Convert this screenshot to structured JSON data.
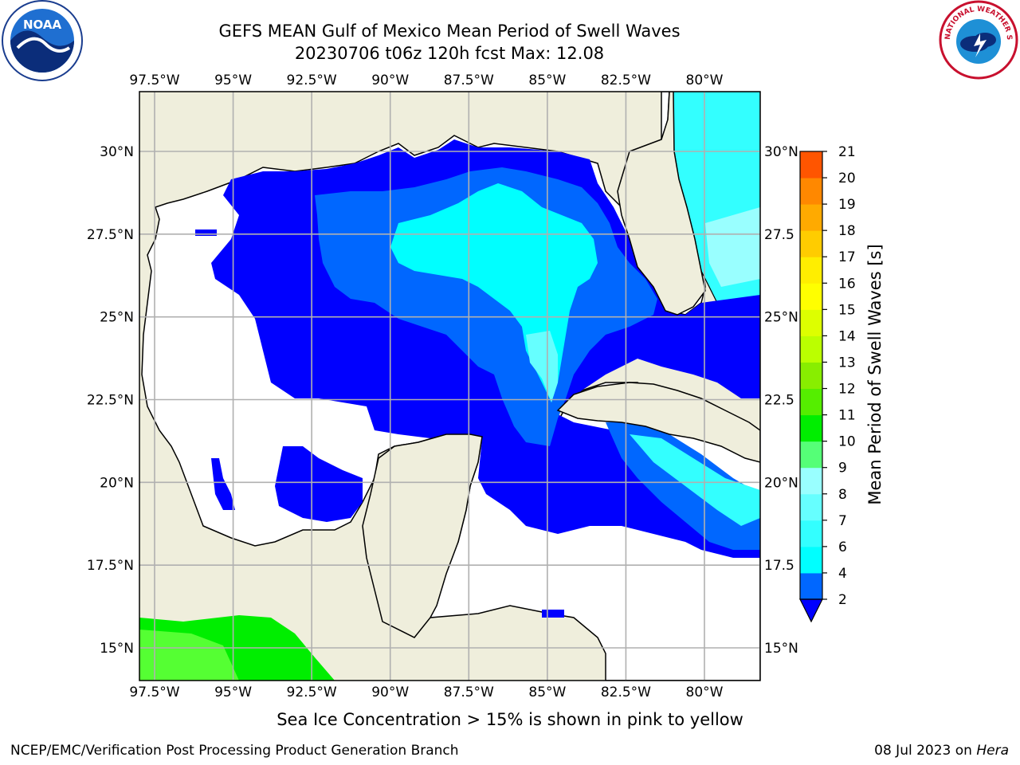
{
  "title": {
    "line1": "GEFS MEAN Gulf of Mexico Mean Period of Swell Waves",
    "line2": "20230706 t06z 120h fcst   Max: 12.08"
  },
  "map": {
    "lon_labels": [
      "97.5°W",
      "95°W",
      "92.5°W",
      "90°W",
      "87.5°W",
      "85°W",
      "82.5°W",
      "80°W"
    ],
    "lon_values": [
      -97.5,
      -95,
      -92.5,
      -90,
      -87.5,
      -85,
      -82.5,
      -80
    ],
    "lat_labels_left": [
      "30°N",
      "27.5°N",
      "25°N",
      "22.5°N",
      "20°N",
      "17.5°N",
      "15°N"
    ],
    "lat_labels_right": [
      "30°N",
      "27.5",
      "25°N",
      "22.5",
      "20°N",
      "17.5",
      "15°N"
    ],
    "lat_values": [
      30,
      27.5,
      25,
      22.5,
      20,
      17.5,
      15
    ],
    "colors": {
      "land": "#efeedc",
      "ocean_missing": "#ffffff",
      "grid": "#b0b0b0",
      "coast": "#000000"
    }
  },
  "colorbar": {
    "title": "Mean Period of Swell Waves [s]",
    "ticks": [
      "21",
      "20",
      "19",
      "18",
      "17",
      "16",
      "15",
      "14",
      "13",
      "12",
      "11",
      "10",
      "9",
      "8",
      "7",
      "6",
      "4",
      "2"
    ],
    "colors": [
      "#0067ff",
      "#00ffff",
      "#33ffff",
      "#66ffff",
      "#99ffff",
      "#55ff77",
      "#00ee00",
      "#55ee00",
      "#88ee00",
      "#bbff00",
      "#ddff00",
      "#ffff00",
      "#ffee00",
      "#ffcc00",
      "#ffaa00",
      "#ff8800",
      "#ff5500",
      "#ff2200",
      "#ff0000"
    ],
    "extend_color": "#0000ff"
  },
  "footer": {
    "note": "Sea Ice Concentration > 15% is shown in pink to yellow",
    "credit_left": "NCEP/EMC/Verification Post Processing Product Generation Branch",
    "credit_right_date": "08 Jul 2023 on ",
    "credit_right_machine": "Hera"
  },
  "logos": {
    "noaa_text": "NOAA",
    "nws_text": "NATIONAL WEATHER SERVICE"
  }
}
